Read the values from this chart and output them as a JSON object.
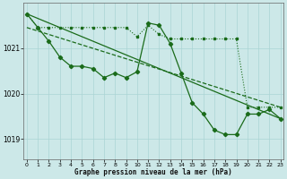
{
  "title": "Graphe pression niveau de la mer (hPa)",
  "bg_color": "#cce8e8",
  "grid_color": "#aad4d4",
  "line_color": "#1a6b1a",
  "x_ticks": [
    0,
    1,
    2,
    3,
    4,
    5,
    6,
    7,
    8,
    9,
    10,
    11,
    12,
    13,
    14,
    15,
    16,
    17,
    18,
    19,
    20,
    21,
    22,
    23
  ],
  "y_ticks": [
    1019,
    1020,
    1021
  ],
  "ylim": [
    1018.55,
    1022.0
  ],
  "xlim": [
    -0.3,
    23.3
  ],
  "series_dotted": {
    "x": [
      0,
      1,
      2,
      3,
      4,
      5,
      6,
      7,
      8,
      9,
      10,
      11,
      12,
      13,
      14,
      15,
      16,
      17,
      18,
      19,
      20,
      21,
      22,
      23
    ],
    "y": [
      1021.75,
      1021.45,
      1021.45,
      1021.45,
      1021.45,
      1021.45,
      1021.45,
      1021.45,
      1021.45,
      1021.45,
      1021.25,
      1021.5,
      1021.3,
      1021.2,
      1021.2,
      1021.2,
      1021.2,
      1021.2,
      1021.2,
      1021.2,
      1019.7,
      1019.7,
      1019.7,
      1019.7
    ]
  },
  "series_wavy": {
    "x": [
      0,
      1,
      2,
      3,
      4,
      5,
      6,
      7,
      8,
      9,
      10,
      11,
      12,
      13,
      14,
      15,
      16,
      17,
      18,
      19,
      20,
      21,
      22,
      23
    ],
    "y": [
      1021.75,
      1021.45,
      1021.15,
      1020.8,
      1020.6,
      1020.6,
      1020.55,
      1020.35,
      1020.45,
      1020.35,
      1020.48,
      1021.55,
      1021.5,
      1021.1,
      1020.45,
      1019.8,
      1019.55,
      1019.2,
      1019.1,
      1019.1,
      1019.55,
      1019.55,
      1019.65,
      1019.45
    ]
  },
  "trend1_x": [
    0,
    23
  ],
  "trend1_y": [
    1021.75,
    1019.45
  ],
  "trend2_x": [
    0,
    23
  ],
  "trend2_y": [
    1021.45,
    1019.7
  ]
}
